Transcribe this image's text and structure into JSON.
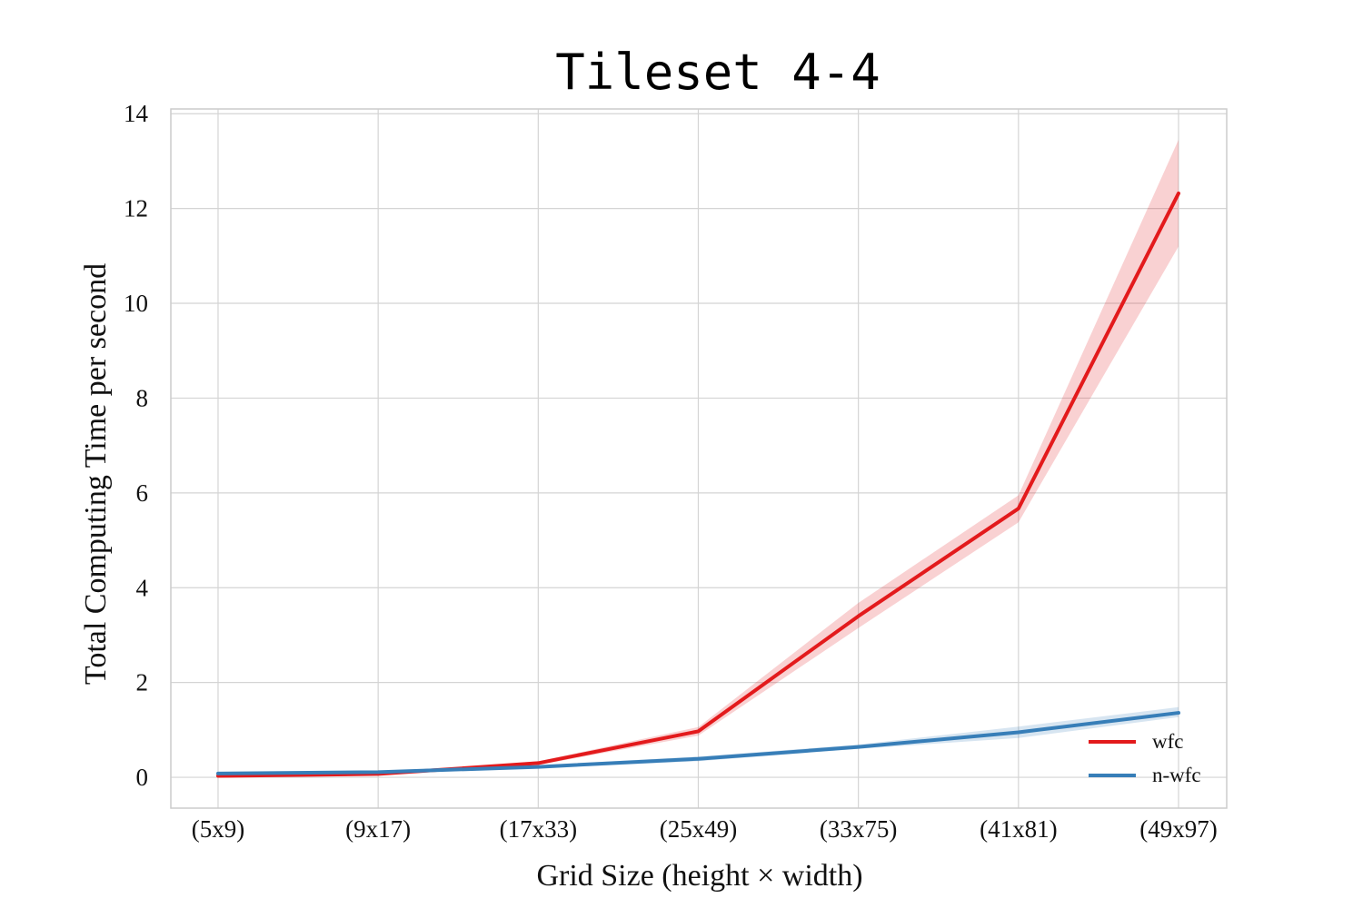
{
  "chart_data": {
    "type": "line",
    "title": "Tileset 4-4",
    "xlabel": "Grid Size (height × width)",
    "ylabel": "Total Computing Time per second",
    "categories": [
      "(5x9)",
      "(9x17)",
      "(17x33)",
      "(25x49)",
      "(33x75)",
      "(41x81)",
      "(49x97)"
    ],
    "ylim": [
      -0.65,
      14.1
    ],
    "yticks": [
      0,
      2,
      4,
      6,
      8,
      10,
      12,
      14
    ],
    "grid": true,
    "legend_position": "bottom-right",
    "series": [
      {
        "name": "wfc",
        "color": "#e31a1c",
        "values": [
          0.03,
          0.07,
          0.3,
          0.97,
          3.4,
          5.67,
          12.32
        ],
        "ci_lower": [
          0.02,
          0.06,
          0.26,
          0.88,
          3.15,
          5.38,
          11.2
        ],
        "ci_upper": [
          0.04,
          0.08,
          0.34,
          1.06,
          3.68,
          5.95,
          13.45
        ]
      },
      {
        "name": "n-wfc",
        "color": "#377eb8",
        "values": [
          0.08,
          0.11,
          0.22,
          0.39,
          0.64,
          0.95,
          1.36
        ],
        "ci_lower": [
          0.07,
          0.1,
          0.19,
          0.34,
          0.6,
          0.83,
          1.27
        ],
        "ci_upper": [
          0.09,
          0.12,
          0.25,
          0.44,
          0.69,
          1.07,
          1.48
        ]
      }
    ]
  }
}
